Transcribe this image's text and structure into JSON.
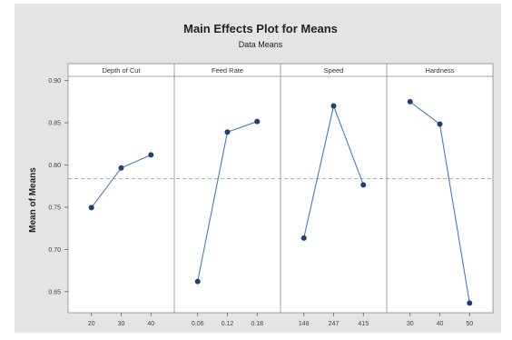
{
  "chart_data": {
    "type": "line",
    "title": "Main Effects Plot for Means",
    "subtitle": "Data Means",
    "ylabel": "Mean of Means",
    "ylim": [
      0.625,
      0.905
    ],
    "yticks": [
      0.65,
      0.7,
      0.75,
      0.8,
      0.85,
      0.9
    ],
    "ytick_labels": [
      "0.65",
      "0.70",
      "0.75",
      "0.80",
      "0.85",
      "0.90"
    ],
    "overall_mean": 0.7837,
    "grid": false,
    "reference_line": "dashed",
    "colors": {
      "line": "#4a7ab5",
      "marker": "#1f3f78",
      "background": "#e4e4e4",
      "panel": "#ffffff",
      "reference": "#999999"
    },
    "panels": [
      {
        "factor": "Depth of Cut",
        "levels": [
          "20",
          "30",
          "40"
        ],
        "values": [
          0.7495,
          0.7965,
          0.812
        ]
      },
      {
        "factor": "Feed Rate",
        "levels": [
          "0.06",
          "0.12",
          "0.18"
        ],
        "values": [
          0.662,
          0.839,
          0.8515
        ]
      },
      {
        "factor": "Speed",
        "levels": [
          "148",
          "247",
          "415"
        ],
        "values": [
          0.7135,
          0.87,
          0.7765
        ]
      },
      {
        "factor": "Hardness",
        "levels": [
          "30",
          "40",
          "50"
        ],
        "values": [
          0.875,
          0.8485,
          0.6365
        ]
      }
    ]
  }
}
